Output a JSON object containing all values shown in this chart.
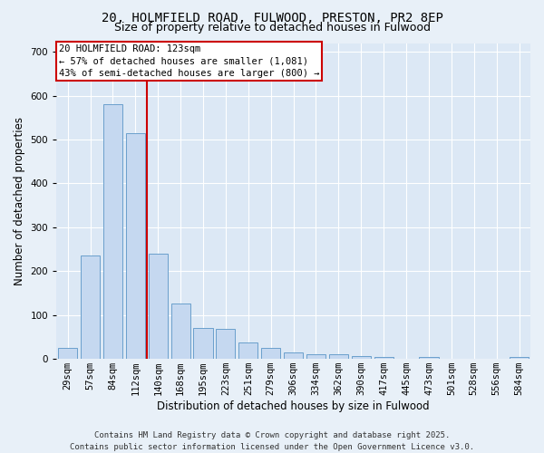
{
  "title_line1": "20, HOLMFIELD ROAD, FULWOOD, PRESTON, PR2 8EP",
  "title_line2": "Size of property relative to detached houses in Fulwood",
  "xlabel": "Distribution of detached houses by size in Fulwood",
  "ylabel": "Number of detached properties",
  "categories": [
    "29sqm",
    "57sqm",
    "84sqm",
    "112sqm",
    "140sqm",
    "168sqm",
    "195sqm",
    "223sqm",
    "251sqm",
    "279sqm",
    "306sqm",
    "334sqm",
    "362sqm",
    "390sqm",
    "417sqm",
    "445sqm",
    "473sqm",
    "501sqm",
    "528sqm",
    "556sqm",
    "584sqm"
  ],
  "values": [
    25,
    235,
    580,
    515,
    240,
    127,
    70,
    68,
    38,
    25,
    15,
    10,
    10,
    7,
    5,
    0,
    5,
    0,
    0,
    0,
    5
  ],
  "bar_color": "#c5d8f0",
  "bar_edge_color": "#6aa0cc",
  "vline_x_index": 3,
  "vline_color": "#cc0000",
  "ylim": [
    0,
    720
  ],
  "yticks": [
    0,
    100,
    200,
    300,
    400,
    500,
    600,
    700
  ],
  "annotation_text": "20 HOLMFIELD ROAD: 123sqm\n← 57% of detached houses are smaller (1,081)\n43% of semi-detached houses are larger (800) →",
  "bg_color": "#dce8f5",
  "fig_bg_color": "#e8f0f8",
  "footer_text": "Contains HM Land Registry data © Crown copyright and database right 2025.\nContains public sector information licensed under the Open Government Licence v3.0.",
  "title_fontsize": 10,
  "subtitle_fontsize": 9,
  "axis_label_fontsize": 8.5,
  "tick_fontsize": 7.5,
  "annotation_fontsize": 7.5,
  "footer_fontsize": 6.5
}
